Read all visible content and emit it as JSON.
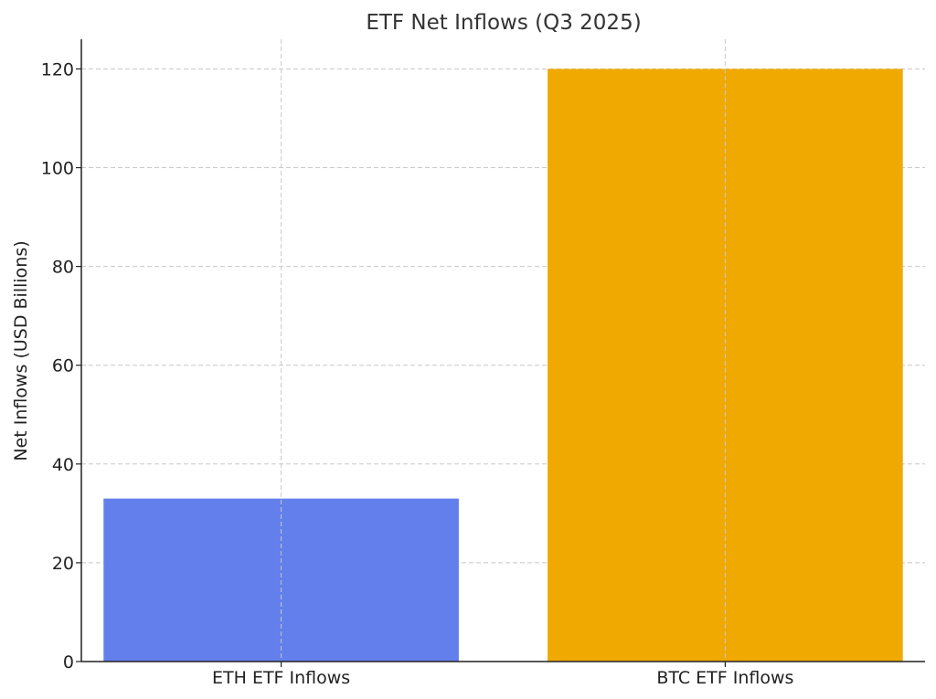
{
  "chart_data": {
    "type": "bar",
    "title": "ETF Net Inflows (Q3 2025)",
    "xlabel": "",
    "ylabel": "Net Inflows (USD Billions)",
    "categories": [
      "ETH ETF Inflows",
      "BTC ETF Inflows"
    ],
    "values": [
      33,
      120
    ],
    "colors": [
      "#637fec",
      "#f0a900"
    ],
    "ylim": [
      0,
      126
    ],
    "yticks": [
      0,
      20,
      40,
      60,
      80,
      100,
      120
    ],
    "grid": true,
    "legend": "none"
  }
}
